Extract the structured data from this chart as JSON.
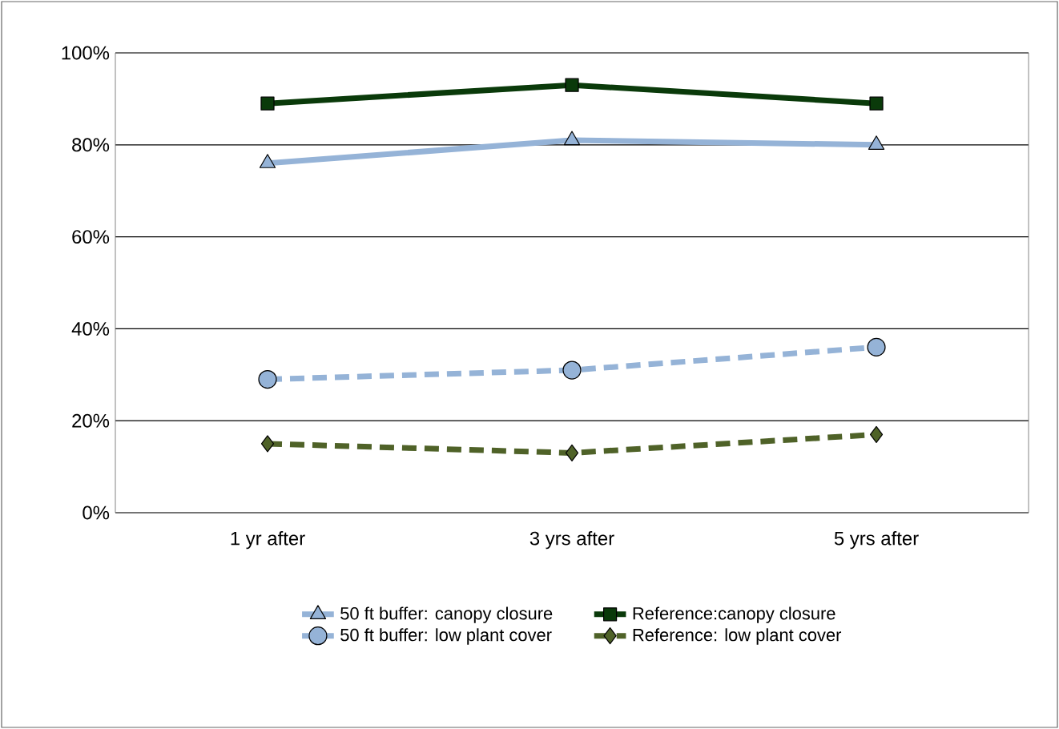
{
  "chart_data": {
    "type": "line",
    "categories": [
      "1 yr after",
      "3 yrs after",
      "5 yrs after"
    ],
    "series": [
      {
        "name": "50 ft buffer: canopy closure",
        "color": "#95b3d7",
        "values": [
          76,
          81,
          80
        ],
        "marker": "triangle",
        "line_style": "solid"
      },
      {
        "name": "Reference:canopy closure",
        "color": "#0a3a0a",
        "values": [
          89,
          93,
          89
        ],
        "marker": "square",
        "line_style": "solid"
      },
      {
        "name": "50 ft buffer: low plant cover",
        "color": "#95b3d7",
        "values": [
          29,
          31,
          36
        ],
        "marker": "circle",
        "line_style": "dashed"
      },
      {
        "name": "Reference: low plant cover",
        "color": "#4f6228",
        "values": [
          15,
          13,
          17
        ],
        "marker": "diamond",
        "line_style": "dashed"
      }
    ],
    "ylim": [
      0,
      100
    ],
    "yticks": [
      {
        "value": 0,
        "label": "0%"
      },
      {
        "value": 20,
        "label": "20%"
      },
      {
        "value": 40,
        "label": "40%"
      },
      {
        "value": 60,
        "label": "60%"
      },
      {
        "value": 80,
        "label": "80%"
      },
      {
        "value": 100,
        "label": "100%"
      }
    ],
    "grid": "y",
    "legend": "bottom"
  }
}
